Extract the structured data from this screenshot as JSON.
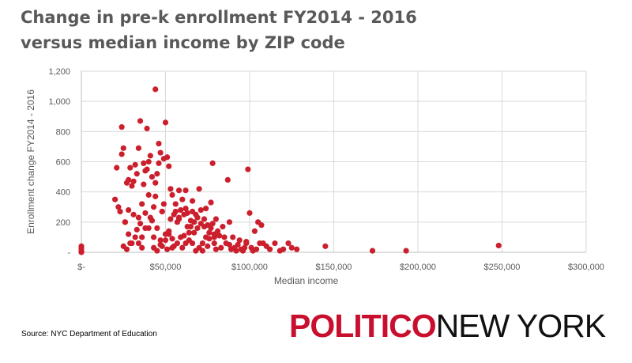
{
  "chart_data": {
    "type": "scatter",
    "title": "Change in pre-k enrollment FY2014 - 2016 versus median income by ZIP code",
    "xlabel": "Median income",
    "ylabel": "Enrollment change FY2014 - 2016",
    "xlim": [
      0,
      300000
    ],
    "ylim": [
      0,
      1200
    ],
    "xticks": [
      0,
      50000,
      100000,
      150000,
      200000,
      250000,
      300000
    ],
    "xtick_labels": [
      "$-",
      "$50,000",
      "$100,000",
      "$150,000",
      "$200,000",
      "$250,000",
      "$300,000"
    ],
    "yticks": [
      0,
      200,
      400,
      600,
      800,
      1000,
      1200
    ],
    "ytick_labels": [
      "-",
      "200",
      "400",
      "600",
      "800",
      "1,000",
      "1,200"
    ],
    "grid": true,
    "marker_color": "#cc1f2d",
    "series": [
      {
        "x": [
          0,
          0,
          0,
          0,
          0,
          20000,
          21000,
          22000,
          23000,
          24000,
          24000,
          25000,
          25000,
          26000,
          27000,
          27000,
          28000,
          28000,
          29000,
          29000,
          30000,
          30000,
          31000,
          31000,
          32000,
          32000,
          33000,
          33000,
          34000,
          34000,
          35000,
          35000,
          36000,
          36000,
          37000,
          37000,
          38000,
          38000,
          39000,
          39000,
          40000,
          40000,
          41000,
          41000,
          42000,
          42000,
          43000,
          43000,
          44000,
          44000,
          45000,
          45000,
          46000,
          46000,
          47000,
          47000,
          48000,
          48000,
          49000,
          49000,
          50000,
          50000,
          51000,
          51000,
          52000,
          52000,
          53000,
          53000,
          54000,
          54000,
          55000,
          55000,
          56000,
          56000,
          57000,
          57000,
          58000,
          58000,
          59000,
          59000,
          60000,
          60000,
          61000,
          61000,
          62000,
          62000,
          63000,
          63000,
          64000,
          64000,
          65000,
          65000,
          66000,
          66000,
          67000,
          67000,
          68000,
          68000,
          69000,
          69000,
          70000,
          70000,
          71000,
          71000,
          72000,
          72000,
          73000,
          73000,
          74000,
          74000,
          75000,
          75000,
          76000,
          76000,
          77000,
          77000,
          78000,
          78000,
          79000,
          79000,
          80000,
          80000,
          81000,
          82000,
          83000,
          84000,
          85000,
          86000,
          87000,
          88000,
          89000,
          90000,
          91000,
          92000,
          93000,
          94000,
          95000,
          96000,
          97000,
          98000,
          99000,
          100000,
          101000,
          102000,
          103000,
          104000,
          105000,
          106000,
          107000,
          108000,
          110000,
          112000,
          115000,
          118000,
          120000,
          123000,
          125000,
          128000,
          145000,
          173000,
          193000,
          248000,
          45000,
          47000,
          50000,
          52000,
          54000,
          38000,
          34000,
          28000,
          26000,
          43000,
          44000,
          48000,
          62000,
          66000,
          79000,
          88000,
          98000,
          58000,
          36000,
          40000
        ],
        "y": [
          40,
          25,
          10,
          5,
          0,
          350,
          560,
          300,
          270,
          650,
          830,
          40,
          690,
          200,
          20,
          460,
          480,
          120,
          560,
          60,
          60,
          440,
          250,
          470,
          100,
          580,
          150,
          520,
          230,
          690,
          190,
          870,
          30,
          320,
          450,
          590,
          260,
          540,
          550,
          820,
          160,
          380,
          230,
          640,
          210,
          500,
          30,
          100,
          370,
          1080,
          520,
          160,
          720,
          590,
          80,
          660,
          40,
          270,
          320,
          620,
          120,
          860,
          630,
          20,
          120,
          570,
          220,
          420,
          90,
          380,
          40,
          250,
          270,
          320,
          200,
          60,
          410,
          220,
          100,
          280,
          30,
          350,
          110,
          250,
          60,
          290,
          170,
          260,
          130,
          80,
          210,
          170,
          60,
          270,
          130,
          200,
          10,
          250,
          230,
          160,
          30,
          420,
          190,
          280,
          10,
          60,
          170,
          220,
          290,
          100,
          40,
          180,
          90,
          130,
          160,
          330,
          190,
          590,
          60,
          100,
          20,
          220,
          140,
          110,
          30,
          170,
          100,
          60,
          480,
          200,
          20,
          100,
          30,
          10,
          50,
          80,
          20,
          10,
          30,
          60,
          550,
          260,
          30,
          10,
          140,
          20,
          200,
          60,
          180,
          60,
          40,
          20,
          60,
          10,
          20,
          60,
          30,
          20,
          40,
          10,
          10,
          45,
          10,
          50,
          80,
          140,
          30,
          160,
          60,
          280,
          200,
          300,
          460,
          270,
          410,
          340,
          120,
          50,
          70,
          230,
          100,
          600
        ]
      }
    ]
  },
  "source": "Source: NYC Department of Education",
  "logo": {
    "part1": "POLITICO",
    "part2": "NEW YORK"
  }
}
